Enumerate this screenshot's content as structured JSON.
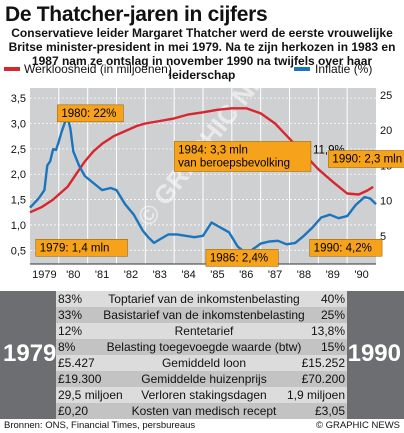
{
  "header": {
    "title": "De Thatcher-jaren in cijfers",
    "subtitle": "Conservatieve leider Margaret Thatcher werd de eerste vrouwelijke Britse minister-president in mei 1979. Na te zijn herkozen in 1983 en 1987 nam ze ontslag in november 1990 na twijfels over haar  leiderschap"
  },
  "colors": {
    "unemployment": "#d7262e",
    "inflation": "#1b75bc",
    "plot_bg": "#cfd0d2",
    "callout": "#f7a21b",
    "table_frame": "#6d6e71"
  },
  "chart_data": {
    "type": "line",
    "x_ticks": [
      "1979",
      "'80",
      "'81",
      "'82",
      "'83",
      "'84",
      "'85",
      "'86",
      "'87",
      "'88",
      "'89",
      "'90"
    ],
    "xlim": [
      1979.0,
      1991.0
    ],
    "series": [
      {
        "name": "Werkloosheid (in miljoenen)",
        "axis": "left",
        "points": [
          [
            1979.0,
            1.25
          ],
          [
            1979.4,
            1.35
          ],
          [
            1979.8,
            1.5
          ],
          [
            1980.0,
            1.6
          ],
          [
            1980.3,
            1.75
          ],
          [
            1980.6,
            2.0
          ],
          [
            1980.9,
            2.25
          ],
          [
            1981.2,
            2.45
          ],
          [
            1981.5,
            2.6
          ],
          [
            1981.9,
            2.75
          ],
          [
            1982.3,
            2.85
          ],
          [
            1982.7,
            2.95
          ],
          [
            1983.0,
            3.0
          ],
          [
            1983.5,
            3.05
          ],
          [
            1984.0,
            3.1
          ],
          [
            1984.5,
            3.18
          ],
          [
            1985.0,
            3.22
          ],
          [
            1985.5,
            3.27
          ],
          [
            1986.0,
            3.3
          ],
          [
            1986.5,
            3.3
          ],
          [
            1987.0,
            3.2
          ],
          [
            1987.5,
            3.0
          ],
          [
            1988.0,
            2.7
          ],
          [
            1988.5,
            2.4
          ],
          [
            1989.0,
            2.1
          ],
          [
            1989.5,
            1.85
          ],
          [
            1990.0,
            1.62
          ],
          [
            1990.4,
            1.6
          ],
          [
            1990.7,
            1.68
          ],
          [
            1990.9,
            1.75
          ]
        ]
      },
      {
        "name": "Inflatie (%)",
        "axis": "right",
        "points": [
          [
            1979.0,
            9.0
          ],
          [
            1979.3,
            10.3
          ],
          [
            1979.5,
            11.5
          ],
          [
            1979.6,
            15.0
          ],
          [
            1979.7,
            15.6
          ],
          [
            1979.8,
            17.3
          ],
          [
            1979.9,
            17.2
          ],
          [
            1980.0,
            18.4
          ],
          [
            1980.1,
            19.8
          ],
          [
            1980.2,
            21.0
          ],
          [
            1980.3,
            21.9
          ],
          [
            1980.4,
            20.2
          ],
          [
            1980.5,
            17.0
          ],
          [
            1980.7,
            15.0
          ],
          [
            1980.9,
            13.5
          ],
          [
            1981.2,
            12.5
          ],
          [
            1981.5,
            11.5
          ],
          [
            1981.8,
            11.8
          ],
          [
            1982.0,
            11.5
          ],
          [
            1982.3,
            9.5
          ],
          [
            1982.6,
            8.0
          ],
          [
            1982.9,
            5.8
          ],
          [
            1983.1,
            4.8
          ],
          [
            1983.3,
            4.0
          ],
          [
            1983.5,
            4.5
          ],
          [
            1983.8,
            5.2
          ],
          [
            1984.1,
            5.2
          ],
          [
            1984.4,
            5.0
          ],
          [
            1984.7,
            4.8
          ],
          [
            1985.0,
            5.0
          ],
          [
            1985.3,
            6.9
          ],
          [
            1985.6,
            6.2
          ],
          [
            1985.9,
            5.5
          ],
          [
            1986.2,
            3.5
          ],
          [
            1986.5,
            2.5
          ],
          [
            1986.7,
            3.0
          ],
          [
            1987.0,
            3.9
          ],
          [
            1987.3,
            4.2
          ],
          [
            1987.6,
            4.3
          ],
          [
            1987.9,
            3.8
          ],
          [
            1988.2,
            4.0
          ],
          [
            1988.5,
            5.0
          ],
          [
            1988.8,
            6.2
          ],
          [
            1989.1,
            7.6
          ],
          [
            1989.4,
            8.0
          ],
          [
            1989.7,
            7.5
          ],
          [
            1990.0,
            7.8
          ],
          [
            1990.3,
            9.4
          ],
          [
            1990.6,
            10.5
          ],
          [
            1990.8,
            10.3
          ],
          [
            1991.0,
            9.5
          ]
        ]
      }
    ],
    "y_left": {
      "label": "Werkloosheid (in miljoenen)",
      "ticks": [
        "0,5",
        "1,0",
        "1,5",
        "2,0",
        "2,5",
        "3,0",
        "3,5"
      ],
      "lim": [
        0.23,
        3.7
      ]
    },
    "y_right": {
      "label": "Inflatie (%)",
      "ticks": [
        "5",
        "10",
        "15",
        "20",
        "25"
      ],
      "lim": [
        1.0,
        26.0
      ]
    },
    "annotations": [
      {
        "text": "1980: 22%",
        "x": 1979.95,
        "y": 3.2,
        "kind": "orange-box"
      },
      {
        "text": "1979: 1,4 mln",
        "x": 1979.2,
        "y": 0.55,
        "kind": "orange-box"
      },
      {
        "text": "1984: 3,3 mln",
        "line2": "van beroepsbevolking",
        "highlight": "11,9%",
        "x": 1984.0,
        "y": 2.35,
        "kind": "orange-box"
      },
      {
        "text": "1990: 2,3 mln",
        "x": 1989.35,
        "y": 2.3,
        "kind": "orange-box"
      },
      {
        "text": "1986: 2,4%",
        "x": 1985.1,
        "y": 0.35,
        "kind": "orange-box"
      },
      {
        "text": "1990: 4,2%",
        "x": 1988.7,
        "y": 0.55,
        "kind": "orange-box"
      }
    ]
  },
  "table": {
    "year_left": "1979",
    "year_right": "1990",
    "rows": [
      {
        "v1979": "83%",
        "label": "Toptarief van de inkomstenbelasting",
        "v1990": "40%"
      },
      {
        "v1979": "33%",
        "label": "Basistarief van de inkomstenbelasting",
        "v1990": "25%"
      },
      {
        "v1979": "12%",
        "label": "Rentetarief",
        "v1990": "13,8%"
      },
      {
        "v1979": "8%",
        "label": "Belasting toegevoegde waarde (btw)",
        "v1990": "15%"
      },
      {
        "v1979": "£5.427",
        "label": "Gemiddeld loon",
        "v1990": "£15.252"
      },
      {
        "v1979": "£19.300",
        "label": "Gemiddelde huizenprijs",
        "v1990": "£70.200"
      },
      {
        "v1979": "29,5 miljoen",
        "label": "Verloren stakingsdagen",
        "v1990": "1,9 miljoen"
      },
      {
        "v1979": "£0,20",
        "label": "Kosten van medisch recept",
        "v1990": "£3,05"
      }
    ]
  },
  "footer": {
    "source": "Bronnen: ONS, Financial Times, persbureaus",
    "credit": "© GRAPHIC NEWS",
    "watermark": "© GRAPHIC NEWS"
  }
}
